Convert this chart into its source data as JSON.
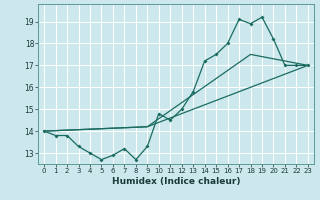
{
  "xlabel": "Humidex (Indice chaleur)",
  "ylabel": "",
  "bg_color": "#cce8ec",
  "grid_color": "#b0d8dc",
  "line_color": "#1a6b60",
  "ylim": [
    12.5,
    19.8
  ],
  "xlim": [
    -0.5,
    23.5
  ],
  "yticks": [
    13,
    14,
    15,
    16,
    17,
    18,
    19
  ],
  "xticks": [
    0,
    1,
    2,
    3,
    4,
    5,
    6,
    7,
    8,
    9,
    10,
    11,
    12,
    13,
    14,
    15,
    16,
    17,
    18,
    19,
    20,
    21,
    22,
    23
  ],
  "line1_x": [
    0,
    1,
    2,
    3,
    4,
    5,
    6,
    7,
    8,
    9,
    10,
    11,
    12,
    13,
    14,
    15,
    16,
    17,
    18,
    19,
    20,
    21,
    22,
    23
  ],
  "line1_y": [
    14.0,
    13.8,
    13.8,
    13.3,
    13.0,
    12.7,
    12.9,
    13.2,
    12.7,
    13.3,
    14.8,
    14.5,
    15.0,
    15.8,
    17.2,
    17.5,
    18.0,
    19.1,
    18.9,
    19.2,
    18.2,
    17.0,
    17.0,
    17.0
  ],
  "line2_x": [
    0,
    9,
    23
  ],
  "line2_y": [
    14.0,
    14.2,
    17.0
  ],
  "line3_x": [
    0,
    9,
    18,
    23
  ],
  "line3_y": [
    14.0,
    14.2,
    17.5,
    17.0
  ]
}
